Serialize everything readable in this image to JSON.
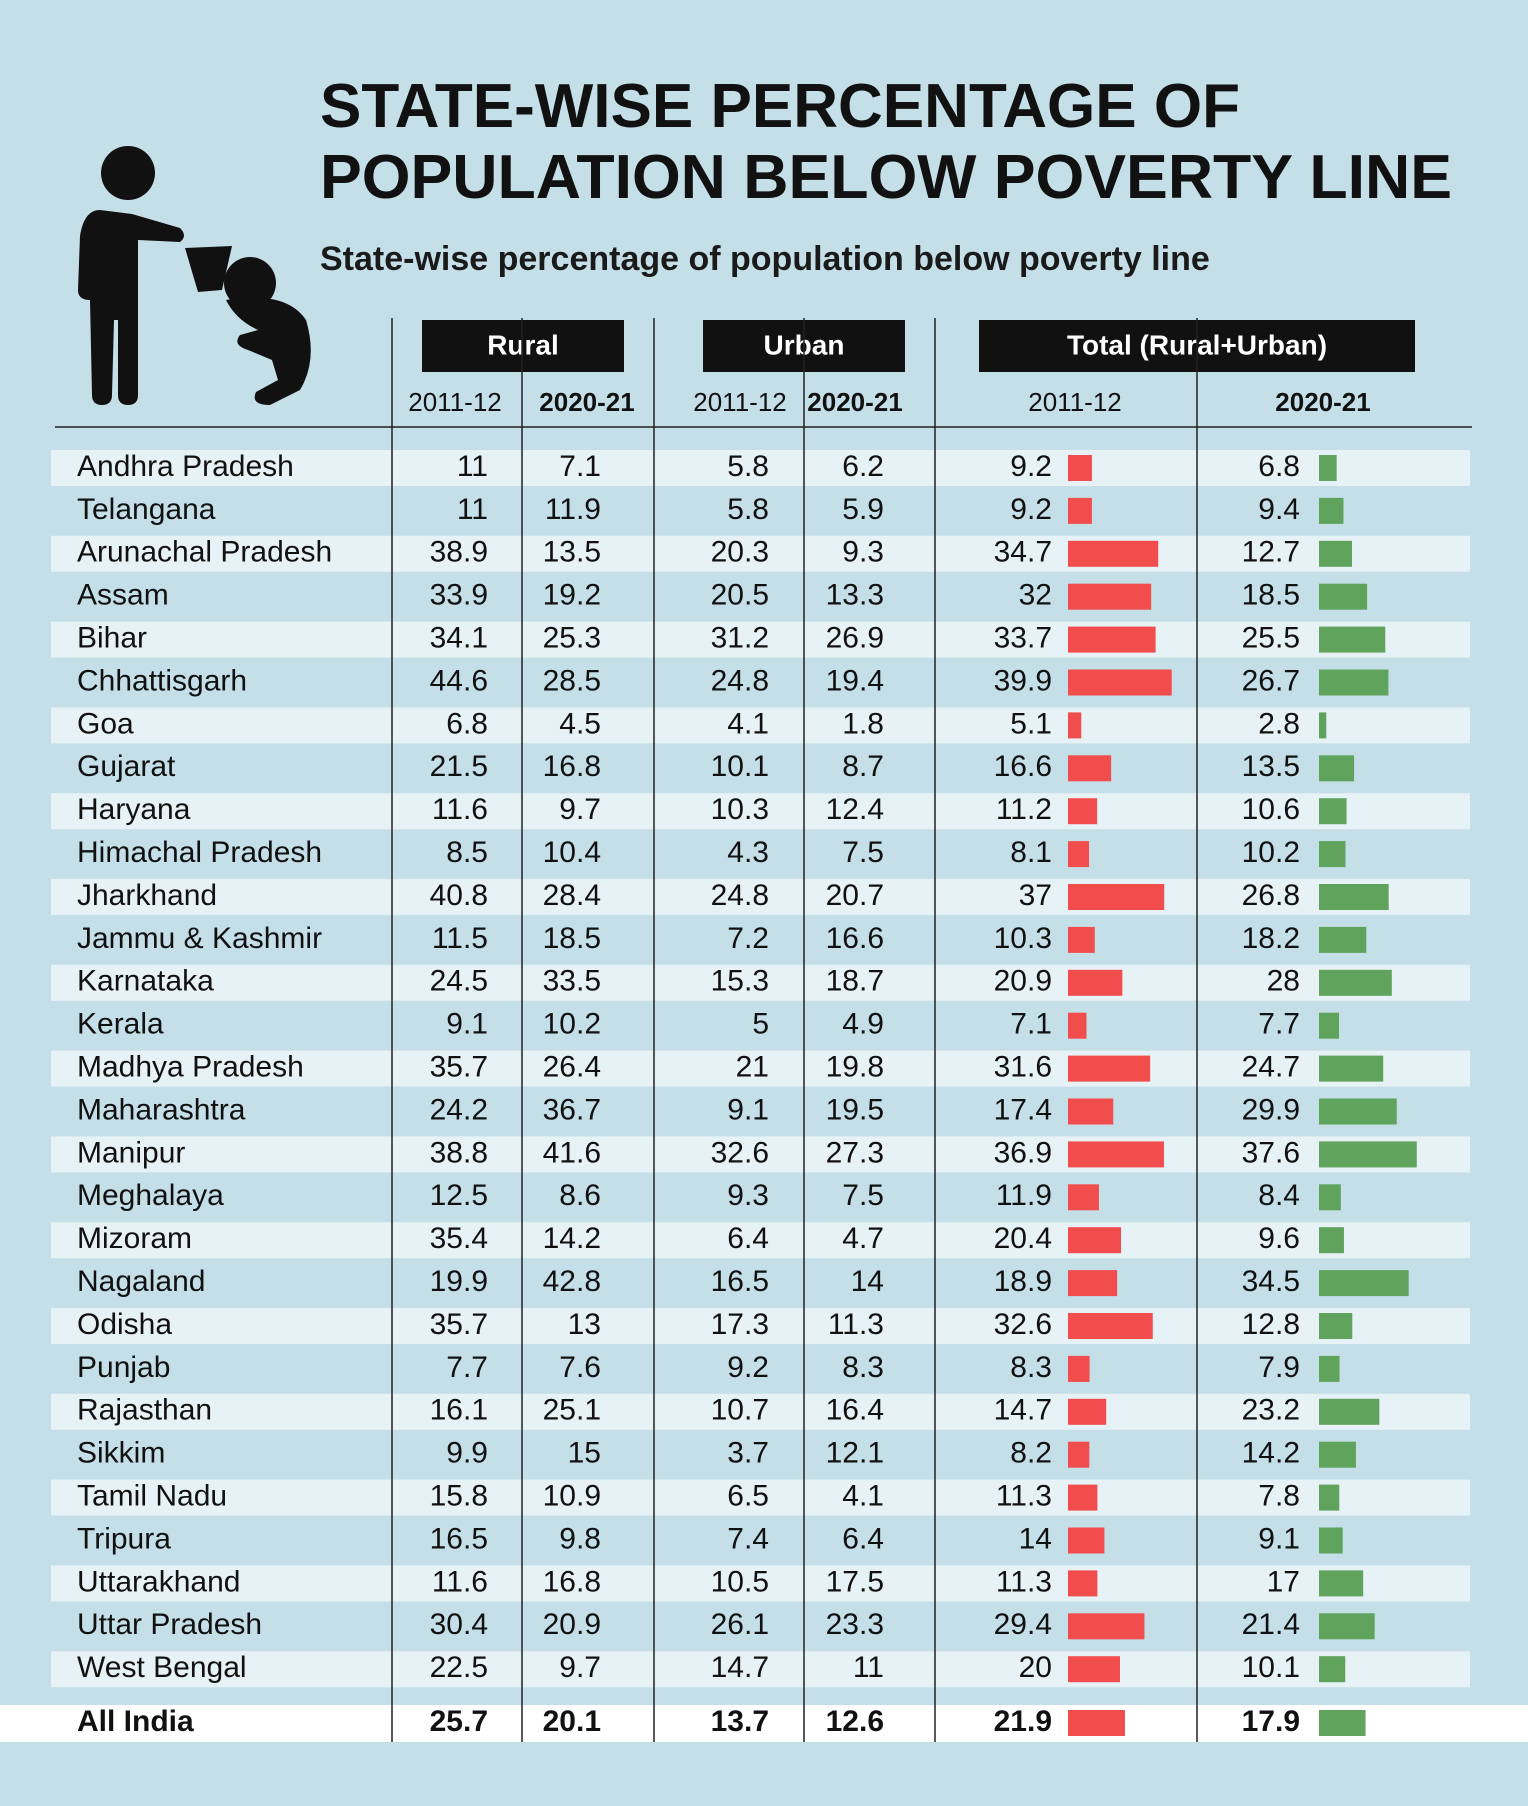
{
  "header": {
    "title": [
      "STATE-WISE PERCENTAGE OF",
      "POPULATION BELOW POVERTY LINE"
    ],
    "subtitle": "State-wise percentage of population below poverty line"
  },
  "table": {
    "groups": [
      "Rural",
      "Urban",
      "Total (Rural+Urban)"
    ],
    "years": [
      "2011-12",
      "2020-21"
    ],
    "bar_colors": [
      "#f24d4d",
      "#5fa35c"
    ],
    "rows": [
      {
        "state": "Andhra Pradesh",
        "values": [
          11,
          7.1,
          5.8,
          6.2,
          9.2,
          6.8
        ]
      },
      {
        "state": "Telangana",
        "values": [
          11,
          11.9,
          5.8,
          5.9,
          9.2,
          9.4
        ]
      },
      {
        "state": "Arunachal Pradesh",
        "values": [
          38.9,
          13.5,
          20.3,
          9.3,
          34.7,
          12.7
        ]
      },
      {
        "state": "Assam",
        "values": [
          33.9,
          19.2,
          20.5,
          13.3,
          32,
          18.5
        ]
      },
      {
        "state": "Bihar",
        "values": [
          34.1,
          25.3,
          31.2,
          26.9,
          33.7,
          25.5
        ]
      },
      {
        "state": "Chhattisgarh",
        "values": [
          44.6,
          28.5,
          24.8,
          19.4,
          39.9,
          26.7
        ]
      },
      {
        "state": "Goa",
        "values": [
          6.8,
          4.5,
          4.1,
          1.8,
          5.1,
          2.8
        ]
      },
      {
        "state": "Gujarat",
        "values": [
          21.5,
          16.8,
          10.1,
          8.7,
          16.6,
          13.5
        ]
      },
      {
        "state": "Haryana",
        "values": [
          11.6,
          9.7,
          10.3,
          12.4,
          11.2,
          10.6
        ]
      },
      {
        "state": "Himachal Pradesh",
        "values": [
          8.5,
          10.4,
          4.3,
          7.5,
          8.1,
          10.2
        ]
      },
      {
        "state": "Jharkhand",
        "values": [
          40.8,
          28.4,
          24.8,
          20.7,
          37,
          26.8
        ]
      },
      {
        "state": "Jammu & Kashmir",
        "values": [
          11.5,
          18.5,
          7.2,
          16.6,
          10.3,
          18.2
        ]
      },
      {
        "state": "Karnataka",
        "values": [
          24.5,
          33.5,
          15.3,
          18.7,
          20.9,
          28
        ]
      },
      {
        "state": "Kerala",
        "values": [
          9.1,
          10.2,
          5,
          4.9,
          7.1,
          7.7
        ]
      },
      {
        "state": "Madhya Pradesh",
        "values": [
          35.7,
          26.4,
          21,
          19.8,
          31.6,
          24.7
        ]
      },
      {
        "state": "Maharashtra",
        "values": [
          24.2,
          36.7,
          9.1,
          19.5,
          17.4,
          29.9
        ]
      },
      {
        "state": "Manipur",
        "values": [
          38.8,
          41.6,
          32.6,
          27.3,
          36.9,
          37.6
        ]
      },
      {
        "state": "Meghalaya",
        "values": [
          12.5,
          8.6,
          9.3,
          7.5,
          11.9,
          8.4
        ]
      },
      {
        "state": "Mizoram",
        "values": [
          35.4,
          14.2,
          6.4,
          4.7,
          20.4,
          9.6
        ]
      },
      {
        "state": "Nagaland",
        "values": [
          19.9,
          42.8,
          16.5,
          14,
          18.9,
          34.5
        ]
      },
      {
        "state": "Odisha",
        "values": [
          35.7,
          13,
          17.3,
          11.3,
          32.6,
          12.8
        ]
      },
      {
        "state": "Punjab",
        "values": [
          7.7,
          7.6,
          9.2,
          8.3,
          8.3,
          7.9
        ]
      },
      {
        "state": "Rajasthan",
        "values": [
          16.1,
          25.1,
          10.7,
          16.4,
          14.7,
          23.2
        ]
      },
      {
        "state": "Sikkim",
        "values": [
          9.9,
          15,
          3.7,
          12.1,
          8.2,
          14.2
        ]
      },
      {
        "state": "Tamil Nadu",
        "values": [
          15.8,
          10.9,
          6.5,
          4.1,
          11.3,
          7.8
        ]
      },
      {
        "state": "Tripura",
        "values": [
          16.5,
          9.8,
          7.4,
          6.4,
          14,
          9.1
        ]
      },
      {
        "state": "Uttarakhand",
        "values": [
          11.6,
          16.8,
          10.5,
          17.5,
          11.3,
          17
        ]
      },
      {
        "state": "Uttar Pradesh",
        "values": [
          30.4,
          20.9,
          26.1,
          23.3,
          29.4,
          21.4
        ]
      },
      {
        "state": "West Bengal",
        "values": [
          22.5,
          9.7,
          14.7,
          11,
          20,
          10.1
        ]
      }
    ],
    "total": {
      "state": "All India",
      "values": [
        25.7,
        20.1,
        13.7,
        12.6,
        21.9,
        17.9
      ]
    }
  }
}
